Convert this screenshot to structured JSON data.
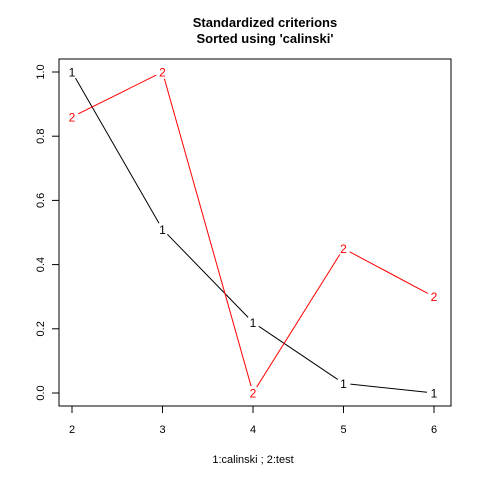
{
  "chart_data": {
    "type": "line",
    "title": "Standardized criterions",
    "subtitle": "Sorted using 'calinski'",
    "xlabel": "1:calinski ; 2:test",
    "ylabel": "",
    "x": [
      2,
      3,
      4,
      5,
      6
    ],
    "xlim": [
      2,
      6
    ],
    "ylim": [
      0.0,
      1.0
    ],
    "xticks": [
      "2",
      "3",
      "4",
      "5",
      "6"
    ],
    "yticks": [
      "0.0",
      "0.2",
      "0.4",
      "0.6",
      "0.8",
      "1.0"
    ],
    "grid": false,
    "series": [
      {
        "marker": "1",
        "color": "#000000",
        "values": [
          1.0,
          0.51,
          0.22,
          0.03,
          0.0
        ]
      },
      {
        "marker": "2",
        "color": "#ff0000",
        "values": [
          0.86,
          1.0,
          0.0,
          0.45,
          0.3
        ]
      }
    ]
  }
}
